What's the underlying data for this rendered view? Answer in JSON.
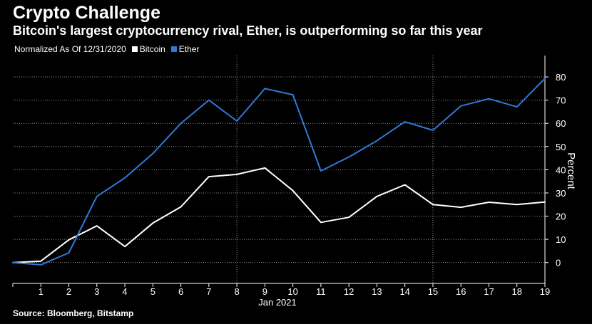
{
  "title": "Crypto Challenge",
  "subtitle": "Bitcoin's largest cryptocurrency rival, Ether, is outperforming so far this year",
  "legend": {
    "note": "Normalized As Of 12/31/2020",
    "items": [
      {
        "label": "Bitcoin",
        "color": "#ffffff"
      },
      {
        "label": "Ether",
        "color": "#2f7ad6"
      }
    ]
  },
  "source": "Source: Bloomberg, Bitstamp",
  "chart_data": {
    "type": "line",
    "xlabel": "Jan 2021",
    "ylabel": "Percent",
    "x": [
      0,
      1,
      2,
      3,
      4,
      5,
      6,
      7,
      8,
      9,
      10,
      11,
      12,
      13,
      14,
      15,
      16,
      17,
      18,
      19
    ],
    "x_tick_labels": [
      "1",
      "2",
      "3",
      "4",
      "5",
      "6",
      "7",
      "8",
      "9",
      "10",
      "11",
      "12",
      "13",
      "14",
      "15",
      "16",
      "17",
      "18",
      "19"
    ],
    "xlim": [
      0,
      19
    ],
    "ylim": [
      -9,
      88
    ],
    "y_ticks": [
      0,
      10,
      20,
      30,
      40,
      50,
      60,
      70,
      80
    ],
    "y_axis_side": "right",
    "grid": true,
    "series": [
      {
        "name": "Bitcoin",
        "color": "#ffffff",
        "values": [
          0,
          0.6,
          9.8,
          15.8,
          6.9,
          17,
          24,
          37,
          38,
          40.8,
          31,
          17.3,
          19.5,
          28.5,
          33.5,
          25,
          23.8,
          26,
          25,
          26.1
        ]
      },
      {
        "name": "Ether",
        "color": "#2f7ad6",
        "values": [
          0,
          -1,
          4.2,
          28.5,
          36.5,
          47,
          60,
          70,
          61,
          75,
          72.3,
          39.5,
          45.5,
          52.5,
          60.7,
          57,
          67.5,
          70.6,
          67.1,
          79.3
        ]
      }
    ]
  }
}
